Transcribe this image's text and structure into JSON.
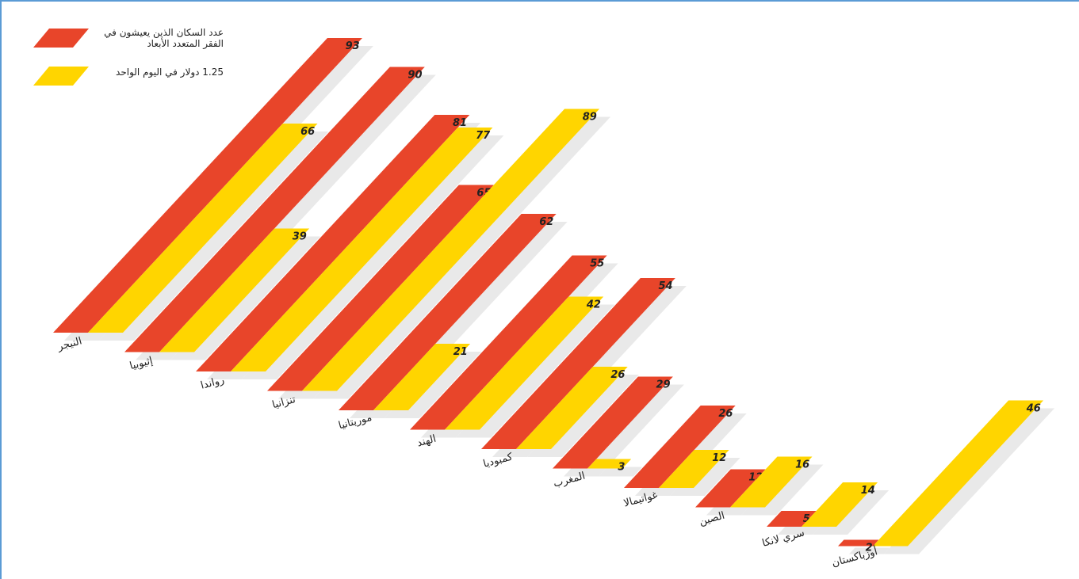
{
  "chart_data": {
    "type": "bar",
    "categories": [
      "النيجر",
      "إثيوبيا",
      "رواندا",
      "تنزانيا",
      "موريتانيا",
      "الهند",
      "كمبوديا",
      "المغرب",
      "غواتيمالا",
      "الصين",
      "سري لانكا",
      "أوزباكستان"
    ],
    "series": [
      {
        "name": "عدد السكان الذين يعيشون في الفقر المتعدد الأبعاد",
        "color": "#e8452a",
        "values": [
          93,
          90,
          81,
          65,
          62,
          55,
          54,
          29,
          26,
          12,
          5,
          2
        ]
      },
      {
        "name": "1.25 دولار في اليوم الواحد",
        "color": "#ffd500",
        "values": [
          66,
          39,
          77,
          89,
          21,
          42,
          26,
          3,
          12,
          16,
          14,
          46
        ]
      }
    ],
    "legend": "top-left"
  }
}
